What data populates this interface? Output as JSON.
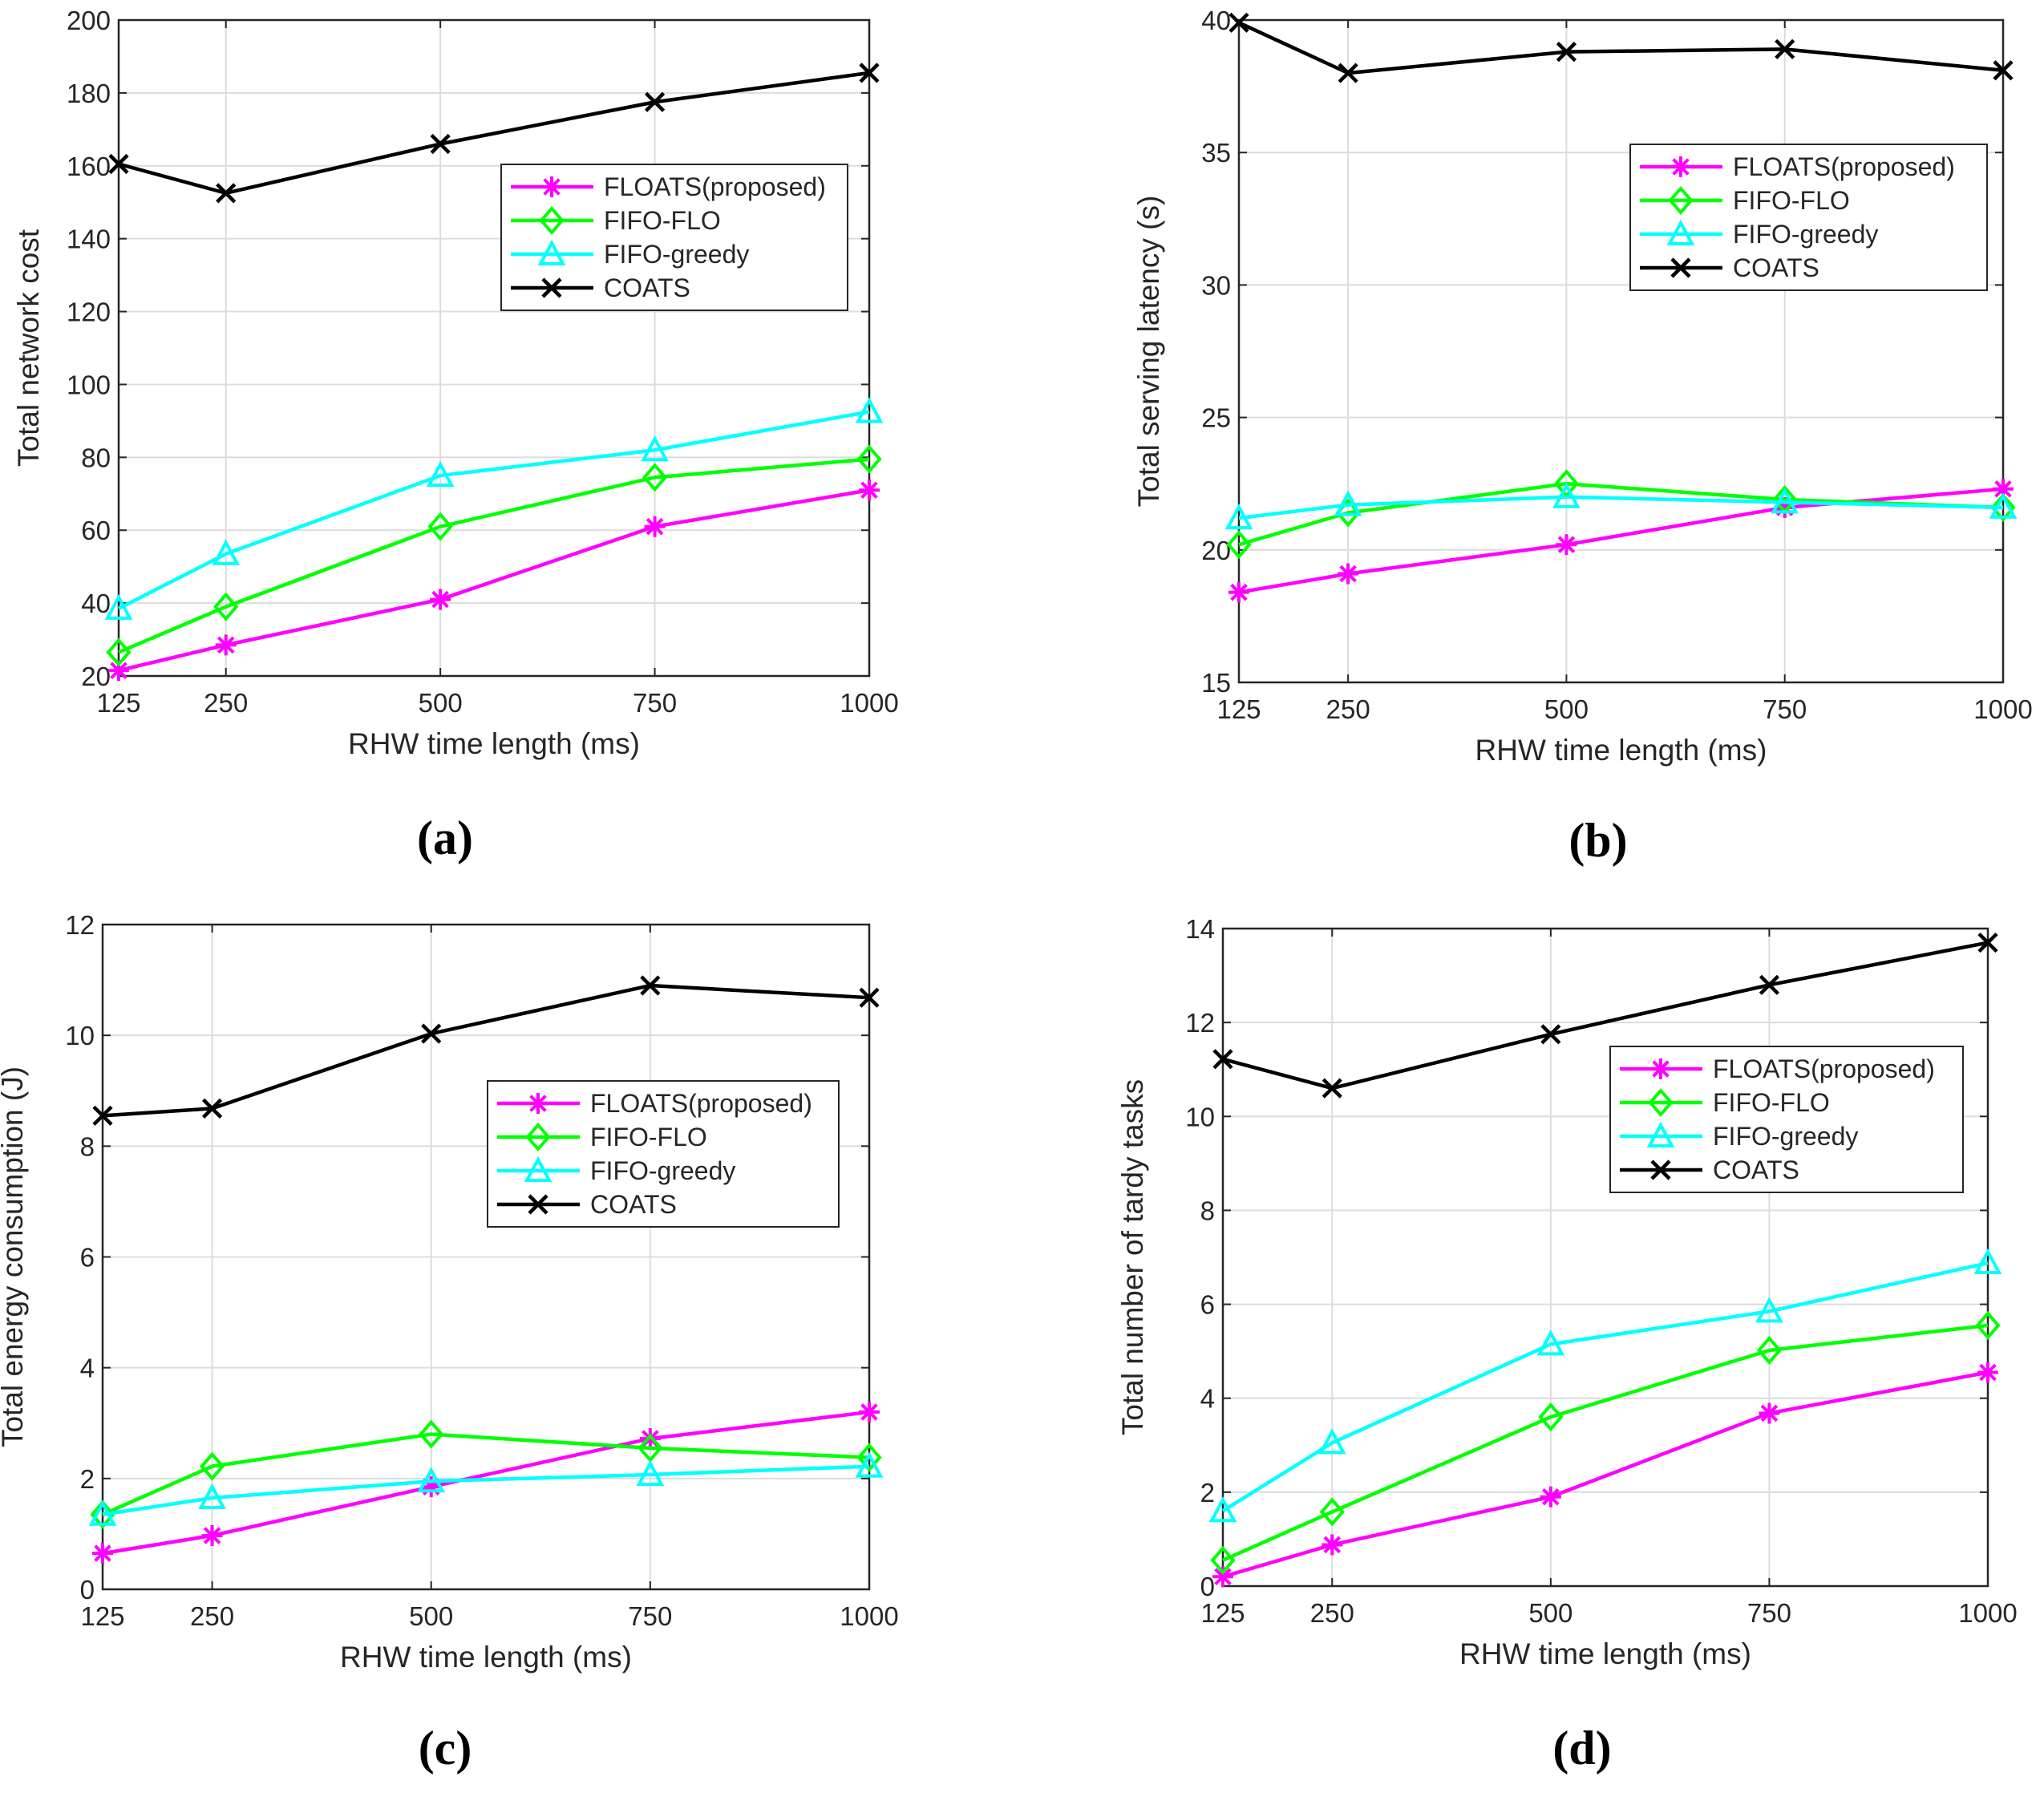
{
  "chart_data": [
    {
      "type": "line",
      "caption": "(a)",
      "xlabel": "RHW time length (ms)",
      "ylabel": "Total network cost",
      "x": [
        125,
        250,
        500,
        750,
        1000
      ],
      "x_ticks": [
        "125",
        "250",
        "500",
        "750",
        "1000"
      ],
      "xlim": [
        125,
        1000
      ],
      "ylim": [
        20,
        200
      ],
      "y_ticks": [
        20,
        40,
        60,
        80,
        100,
        120,
        140,
        160,
        180,
        200
      ],
      "grid": true,
      "legend_position": "right-upper",
      "series": [
        {
          "name": "FLOATS(proposed)",
          "values": [
            21.5,
            28.5,
            41,
            61,
            71
          ]
        },
        {
          "name": "FIFO-FLO",
          "values": [
            26.5,
            39,
            61,
            74.5,
            79.5
          ]
        },
        {
          "name": "FIFO-greedy",
          "values": [
            38.5,
            53.5,
            75,
            82,
            92.5
          ]
        },
        {
          "name": "COATS",
          "values": [
            160.5,
            152.5,
            166,
            177.5,
            185.5
          ]
        }
      ]
    },
    {
      "type": "line",
      "caption": "(b)",
      "xlabel": "RHW time length (ms)",
      "ylabel": "Total serving latency (s)",
      "x": [
        125,
        250,
        500,
        750,
        1000
      ],
      "x_ticks": [
        "125",
        "250",
        "500",
        "750",
        "1000"
      ],
      "xlim": [
        125,
        1000
      ],
      "ylim": [
        15,
        40
      ],
      "y_ticks": [
        15,
        20,
        25,
        30,
        35,
        40
      ],
      "grid": true,
      "legend_position": "right-upper",
      "series": [
        {
          "name": "FLOATS(proposed)",
          "values": [
            18.4,
            19.1,
            20.2,
            21.6,
            22.3
          ]
        },
        {
          "name": "FIFO-FLO",
          "values": [
            20.2,
            21.4,
            22.5,
            21.9,
            21.6
          ]
        },
        {
          "name": "FIFO-greedy",
          "values": [
            21.2,
            21.7,
            22.0,
            21.8,
            21.6
          ]
        },
        {
          "name": "COATS",
          "values": [
            39.9,
            38.0,
            38.8,
            38.9,
            38.1
          ]
        }
      ]
    },
    {
      "type": "line",
      "caption": "(c)",
      "xlabel": "RHW time length (ms)",
      "ylabel": "Total energy consumption (J)",
      "x": [
        125,
        250,
        500,
        750,
        1000
      ],
      "x_ticks": [
        "125",
        "250",
        "500",
        "750",
        "1000"
      ],
      "xlim": [
        125,
        1000
      ],
      "ylim": [
        0,
        12
      ],
      "y_ticks": [
        0,
        2,
        4,
        6,
        8,
        10,
        12
      ],
      "grid": true,
      "legend_position": "right-middle",
      "series": [
        {
          "name": "FLOATS(proposed)",
          "values": [
            0.65,
            0.97,
            1.85,
            2.72,
            3.2
          ]
        },
        {
          "name": "FIFO-FLO",
          "values": [
            1.35,
            2.22,
            2.8,
            2.55,
            2.38
          ]
        },
        {
          "name": "FIFO-greedy",
          "values": [
            1.35,
            1.65,
            1.95,
            2.07,
            2.22
          ]
        },
        {
          "name": "COATS",
          "values": [
            8.55,
            8.68,
            10.03,
            10.9,
            10.68
          ]
        }
      ]
    },
    {
      "type": "line",
      "caption": "(d)",
      "xlabel": "RHW time length (ms)",
      "ylabel": "Total number of tardy tasks",
      "x": [
        125,
        250,
        500,
        750,
        1000
      ],
      "x_ticks": [
        "125",
        "250",
        "500",
        "750",
        "1000"
      ],
      "xlim": [
        125,
        1000
      ],
      "ylim": [
        0,
        14
      ],
      "y_ticks": [
        0,
        2,
        4,
        6,
        8,
        10,
        12,
        14
      ],
      "grid": true,
      "legend_position": "right-upper",
      "series": [
        {
          "name": "FLOATS(proposed)",
          "values": [
            0.2,
            0.88,
            1.9,
            3.68,
            4.55
          ]
        },
        {
          "name": "FIFO-FLO",
          "values": [
            0.55,
            1.58,
            3.6,
            5.02,
            5.55
          ]
        },
        {
          "name": "FIFO-greedy",
          "values": [
            1.6,
            3.05,
            5.15,
            5.85,
            6.88
          ]
        },
        {
          "name": "COATS",
          "values": [
            11.22,
            10.6,
            11.75,
            12.8,
            13.7
          ]
        }
      ]
    }
  ],
  "series_styles": [
    {
      "color": "#ff00ff",
      "marker": "asterisk"
    },
    {
      "color": "#00ff00",
      "marker": "diamond"
    },
    {
      "color": "#00ffff",
      "marker": "triangle"
    },
    {
      "color": "#000000",
      "marker": "x"
    }
  ]
}
